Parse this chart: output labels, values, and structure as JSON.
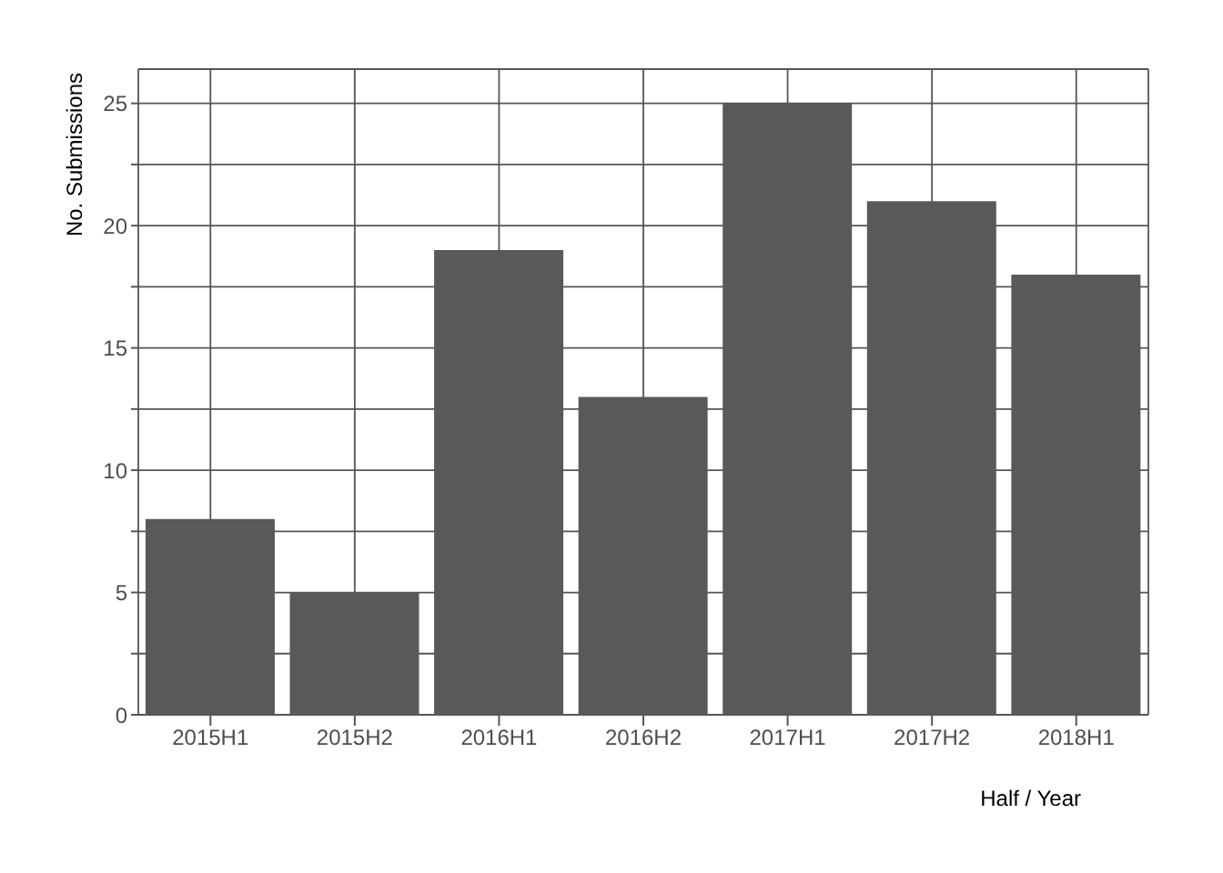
{
  "chart_data": {
    "type": "bar",
    "xlabel": "Half / Year",
    "ylabel": "No. Submissions",
    "categories": [
      "2015H1",
      "2015H2",
      "2016H1",
      "2016H2",
      "2017H1",
      "2017H2",
      "2018H1"
    ],
    "values": [
      8,
      5,
      19,
      13,
      25,
      21,
      18
    ],
    "color": "#595959",
    "ylim": [
      0,
      26.4
    ],
    "yticks": [
      0,
      {
        "value": 2.5,
        "label": null
      },
      5,
      {
        "value": 7.5,
        "label": null
      },
      10,
      {
        "value": 12.5,
        "label": null
      },
      15,
      {
        "value": 17.5,
        "label": null
      },
      20,
      {
        "value": 22.5,
        "label": null
      },
      25
    ],
    "grid": true,
    "legend": false
  }
}
